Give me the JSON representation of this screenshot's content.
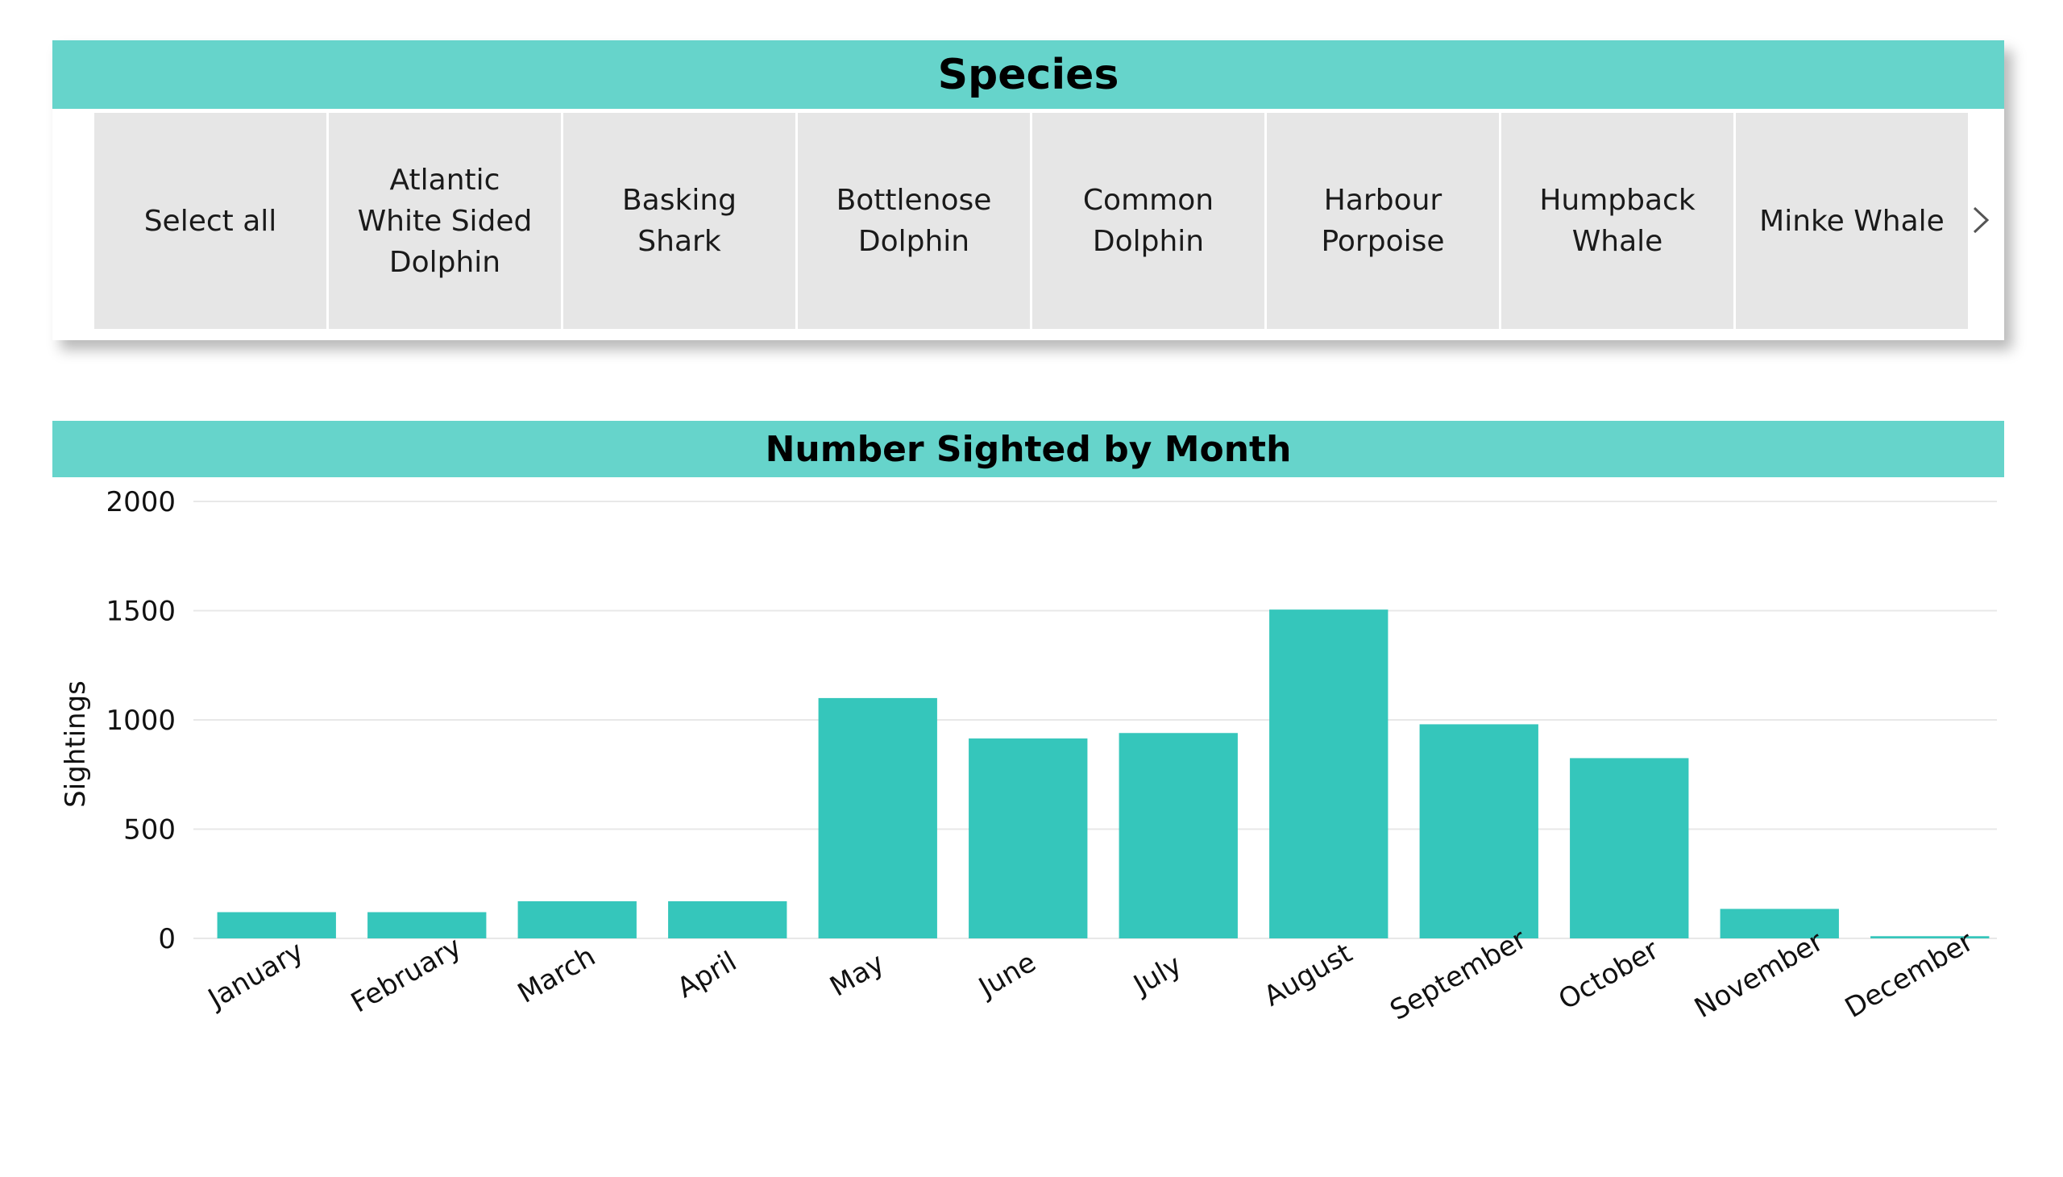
{
  "slicer": {
    "title": "Species",
    "options": [
      "Select all",
      "Atlantic White Sided Dolphin",
      "Basking Shark",
      "Bottlenose Dolphin",
      "Common Dolphin",
      "Harbour Porpoise",
      "Humpback Whale",
      "Minke Whale"
    ],
    "next_icon": "chevron-right-icon"
  },
  "chart": {
    "title": "Number Sighted  by Month"
  },
  "colors": {
    "header_bg": "#66d4cb",
    "bar": "#35c6bb",
    "tile_bg": "#e6e6e6",
    "gridline": "#e8e8e8"
  },
  "chart_data": {
    "type": "bar",
    "title": "Number Sighted  by Month",
    "xlabel": "",
    "ylabel": "Sightings",
    "categories": [
      "January",
      "February",
      "March",
      "April",
      "May",
      "June",
      "July",
      "August",
      "September",
      "October",
      "November",
      "December"
    ],
    "values": [
      120,
      120,
      170,
      170,
      1100,
      915,
      940,
      1505,
      980,
      825,
      135,
      10
    ],
    "ylim": [
      0,
      2000
    ],
    "yticks": [
      0,
      500,
      1000,
      1500,
      2000
    ],
    "grid": true,
    "legend": "none"
  }
}
